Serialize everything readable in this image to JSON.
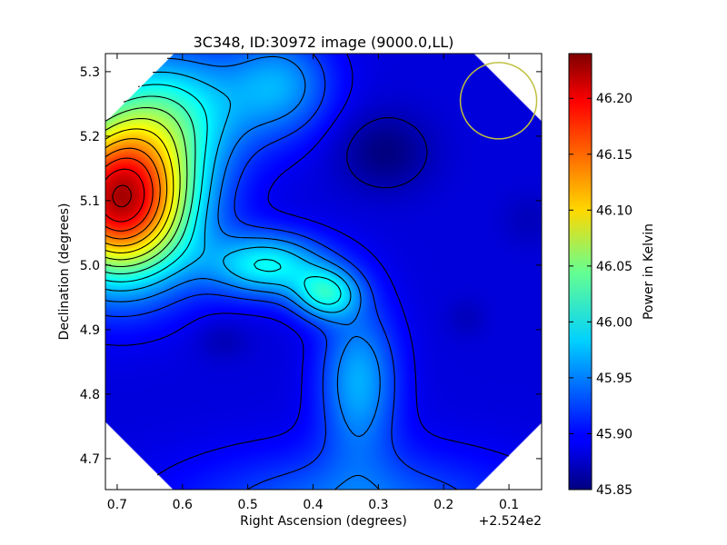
{
  "chart_data": {
    "type": "heatmap",
    "title": "3C348, ID:30972 image (9000.0,LL)",
    "xlabel": "Right Ascension (degrees)",
    "ylabel": "Declination (degrees)",
    "x_offset_label": "+2.524e2",
    "xlim": [
      0.718,
      0.05
    ],
    "ylim": [
      4.652,
      5.328
    ],
    "x_ticks": [
      "0.7",
      "0.6",
      "0.5",
      "0.4",
      "0.3",
      "0.2",
      "0.1"
    ],
    "y_ticks": [
      "4.7",
      "4.8",
      "4.9",
      "5.0",
      "5.1",
      "5.2",
      "5.3"
    ],
    "colorbar": {
      "label": "Power in Kelvin",
      "range": [
        45.85,
        46.24
      ],
      "ticks": [
        "45.85",
        "45.90",
        "45.95",
        "46.00",
        "46.05",
        "46.10",
        "46.15",
        "46.20"
      ]
    },
    "colormap": "jet",
    "contours": true,
    "features": [
      {
        "name": "maximum",
        "x": 0.695,
        "y": 5.1,
        "value": 46.24
      },
      {
        "name": "secondary peak",
        "x": 0.38,
        "y": 4.958,
        "value": 46.06
      },
      {
        "name": "minimum",
        "x": 0.29,
        "y": 5.175,
        "value": 45.855
      },
      {
        "name": "local minimum",
        "x": 0.538,
        "y": 4.882,
        "value": 45.9
      },
      {
        "name": "local minimum",
        "x": 0.165,
        "y": 4.918,
        "value": 45.9
      },
      {
        "name": "local minimum",
        "x": 0.07,
        "y": 5.07,
        "value": 45.9
      }
    ],
    "beam_circle": {
      "x": 0.116,
      "y": 5.255,
      "color": "#bfbf3f"
    }
  }
}
